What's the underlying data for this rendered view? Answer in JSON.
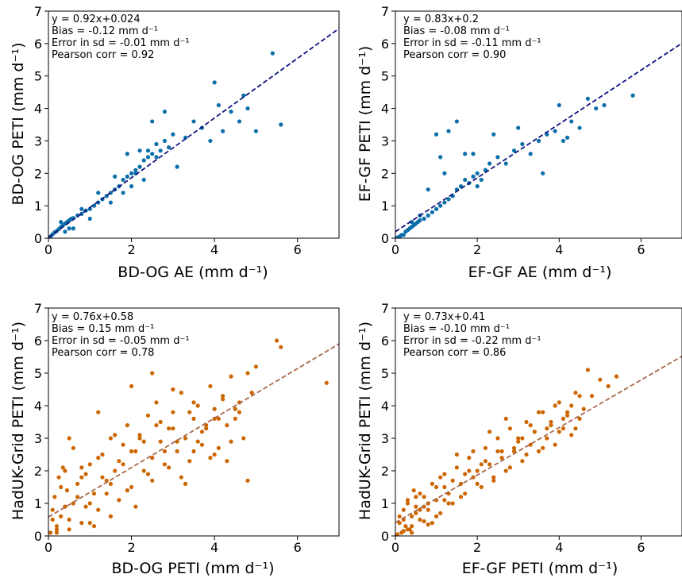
{
  "colors": {
    "top_points": "#0a6fa9",
    "top_fit": "#10157f",
    "bottom_points": "#cc6600",
    "bottom_fit": "#a86a4e"
  },
  "chart_data": [
    {
      "type": "scatter",
      "xlabel": "BD-OG AE (mm d⁻¹)",
      "ylabel": "BD-OG PETI (mm d⁻¹)",
      "xlim": [
        0,
        7
      ],
      "ylim": [
        0,
        7
      ],
      "xticks": [
        0,
        2,
        4,
        6
      ],
      "yticks": [
        0,
        1,
        2,
        3,
        4,
        5,
        6,
        7
      ],
      "annotations": [
        "y = 0.92x+0.024",
        "Bias = -0.12 mm d⁻¹",
        "Error in sd = -0.01 mm d⁻¹",
        "Pearson corr = 0.92"
      ],
      "fit": {
        "slope": 0.92,
        "intercept": 0.024
      },
      "point_color": "top_points",
      "fit_color": "top_fit",
      "x": [
        0.05,
        0.1,
        0.15,
        0.2,
        0.25,
        0.3,
        0.35,
        0.4,
        0.45,
        0.5,
        0.55,
        0.6,
        0.7,
        0.8,
        0.9,
        1.0,
        1.1,
        1.2,
        1.3,
        1.4,
        1.5,
        1.6,
        1.7,
        1.8,
        1.9,
        2.0,
        2.1,
        2.2,
        2.3,
        2.4,
        2.5,
        2.6,
        2.7,
        2.8,
        2.9,
        3.0,
        3.3,
        3.5,
        3.7,
        3.9,
        4.0,
        4.1,
        4.2,
        4.4,
        4.6,
        4.7,
        4.8,
        5.0,
        5.4,
        5.6,
        0.3,
        0.5,
        0.8,
        1.2,
        1.6,
        1.9,
        2.2,
        2.5,
        2.8,
        3.1,
        1.8,
        2.0,
        2.3,
        2.6,
        1.5,
        1.0,
        0.6,
        0.4,
        2.1,
        2.4
      ],
      "y": [
        0.05,
        0.12,
        0.18,
        0.22,
        0.28,
        0.35,
        0.4,
        0.45,
        0.5,
        0.55,
        0.6,
        0.62,
        0.7,
        0.75,
        0.85,
        0.9,
        1.0,
        1.1,
        1.2,
        1.3,
        1.4,
        1.5,
        1.6,
        1.8,
        1.9,
        2.0,
        2.1,
        2.2,
        2.4,
        2.5,
        2.6,
        2.5,
        2.7,
        3.0,
        2.8,
        3.2,
        3.1,
        3.6,
        3.4,
        3.0,
        4.8,
        4.1,
        3.3,
        3.9,
        3.6,
        4.4,
        4.0,
        3.3,
        5.7,
        3.5,
        0.5,
        0.3,
        0.9,
        1.4,
        1.9,
        2.6,
        2.7,
        3.6,
        3.9,
        2.2,
        1.4,
        1.6,
        1.8,
        2.9,
        1.1,
        0.6,
        0.3,
        0.2,
        2.0,
        2.7
      ]
    },
    {
      "type": "scatter",
      "xlabel": "EF-GF AE (mm d⁻¹)",
      "ylabel": "EF-GF PETI (mm d⁻¹)",
      "xlim": [
        0,
        7
      ],
      "ylim": [
        0,
        7
      ],
      "xticks": [
        0,
        2,
        4,
        6
      ],
      "yticks": [
        0,
        1,
        2,
        3,
        4,
        5,
        6,
        7
      ],
      "annotations": [
        "y = 0.83x+0.2",
        "Bias = -0.08 mm d⁻¹",
        "Error in sd = -0.11 mm d⁻¹",
        "Pearson corr = 0.90"
      ],
      "fit": {
        "slope": 0.83,
        "intercept": 0.2
      },
      "point_color": "top_points",
      "fit_color": "top_fit",
      "x": [
        0.05,
        0.1,
        0.15,
        0.2,
        0.25,
        0.3,
        0.35,
        0.4,
        0.45,
        0.5,
        0.55,
        0.6,
        0.7,
        0.8,
        0.9,
        1.0,
        1.1,
        1.2,
        1.3,
        1.4,
        1.5,
        1.6,
        1.7,
        1.8,
        1.9,
        2.0,
        2.1,
        2.2,
        2.3,
        2.5,
        2.7,
        2.9,
        3.1,
        3.3,
        3.5,
        3.7,
        3.9,
        4.0,
        4.1,
        4.3,
        4.5,
        4.7,
        4.9,
        5.1,
        5.8,
        1.0,
        1.3,
        1.5,
        1.7,
        2.4,
        0.8,
        0.6,
        0.4,
        1.1,
        2.0,
        3.0,
        3.6,
        4.2,
        1.9,
        1.2
      ],
      "y": [
        0.02,
        0.05,
        0.1,
        0.1,
        0.2,
        0.25,
        0.3,
        0.35,
        0.4,
        0.45,
        0.5,
        0.55,
        0.6,
        0.7,
        0.8,
        0.9,
        1.0,
        1.1,
        1.2,
        1.3,
        1.5,
        1.6,
        1.8,
        1.7,
        1.9,
        2.0,
        1.8,
        2.1,
        2.3,
        2.5,
        2.3,
        2.7,
        2.9,
        2.6,
        3.0,
        3.2,
        3.3,
        4.1,
        3.0,
        3.6,
        3.4,
        4.3,
        4.0,
        4.1,
        4.4,
        3.2,
        3.3,
        3.6,
        2.6,
        3.2,
        1.5,
        0.7,
        0.5,
        2.5,
        1.6,
        3.4,
        2.0,
        3.1,
        2.6,
        2.0
      ]
    },
    {
      "type": "scatter",
      "xlabel": "BD-OG PETI (mm d⁻¹)",
      "ylabel": "HadUK-Grid PETI (mm d⁻¹)",
      "xlim": [
        0,
        7
      ],
      "ylim": [
        0,
        7
      ],
      "xticks": [
        0,
        2,
        4,
        6
      ],
      "yticks": [
        0,
        1,
        2,
        3,
        4,
        5,
        6,
        7
      ],
      "annotations": [
        "y = 0.76x+0.58",
        "Bias = 0.15 mm d⁻¹",
        "Error in sd = -0.05 mm d⁻¹",
        "Pearson corr = 0.78"
      ],
      "fit": {
        "slope": 0.76,
        "intercept": 0.58
      },
      "point_color": "bottom_points",
      "fit_color": "bottom_fit",
      "x": [
        0.05,
        0.1,
        0.15,
        0.2,
        0.25,
        0.3,
        0.35,
        0.4,
        0.45,
        0.5,
        0.6,
        0.7,
        0.8,
        0.9,
        1.0,
        1.1,
        1.2,
        1.3,
        1.4,
        1.5,
        1.6,
        1.7,
        1.8,
        1.9,
        2.0,
        2.1,
        2.2,
        2.3,
        2.4,
        2.5,
        2.6,
        2.7,
        2.8,
        2.9,
        3.0,
        3.1,
        3.2,
        3.3,
        3.4,
        3.5,
        3.6,
        3.7,
        3.8,
        3.9,
        4.0,
        4.1,
        4.2,
        4.3,
        4.4,
        4.5,
        4.6,
        4.7,
        4.8,
        4.9,
        5.0,
        5.5,
        5.6,
        6.7,
        0.1,
        0.2,
        0.3,
        0.5,
        0.7,
        0.9,
        1.1,
        1.3,
        1.5,
        1.7,
        1.9,
        2.1,
        2.3,
        2.5,
        2.7,
        2.9,
        3.1,
        3.3,
        3.5,
        3.7,
        3.9,
        4.1,
        4.3,
        4.5,
        0.4,
        0.6,
        0.8,
        1.0,
        1.2,
        1.4,
        1.6,
        1.8,
        2.0,
        2.2,
        2.4,
        2.6,
        2.8,
        3.0,
        3.2,
        3.4,
        3.6,
        3.8,
        4.0,
        4.2,
        4.4,
        4.6,
        4.8,
        2.0,
        1.5,
        1.0,
        0.5,
        3.0,
        2.5,
        3.5,
        4.0,
        0.2,
        0.8,
        1.2
      ],
      "y": [
        0.1,
        0.5,
        1.2,
        0.3,
        1.8,
        0.6,
        2.1,
        0.9,
        1.4,
        0.2,
        1.0,
        1.6,
        0.4,
        1.9,
        2.2,
        1.3,
        0.8,
        2.5,
        1.7,
        3.0,
        2.0,
        1.1,
        2.8,
        3.4,
        1.5,
        2.6,
        3.1,
        2.0,
        3.7,
        2.4,
        4.1,
        2.9,
        2.2,
        3.3,
        3.8,
        2.6,
        4.4,
        3.0,
        2.3,
        3.6,
        4.0,
        2.8,
        3.3,
        4.6,
        3.9,
        2.7,
        4.2,
        3.4,
        4.9,
        3.6,
        4.1,
        3.0,
        5.0,
        4.4,
        5.2,
        6.0,
        5.8,
        4.7,
        0.8,
        0.2,
        1.5,
        0.5,
        1.2,
        0.9,
        0.3,
        1.8,
        0.6,
        2.3,
        1.4,
        0.9,
        2.9,
        1.7,
        3.5,
        2.1,
        2.9,
        1.6,
        2.6,
        3.2,
        2.4,
        3.6,
        2.3,
        3.9,
        2.0,
        2.7,
        1.8,
        1.0,
        2.4,
        1.3,
        3.1,
        2.2,
        2.6,
        3.0,
        1.9,
        3.4,
        2.6,
        3.3,
        1.8,
        3.8,
        2.9,
        3.4,
        2.5,
        4.3,
        2.9,
        3.8,
        1.7,
        4.6,
        1.6,
        0.4,
        3.0,
        4.5,
        5.0,
        4.1,
        3.6,
        0.1,
        2.1,
        3.8
      ]
    },
    {
      "type": "scatter",
      "xlabel": "EF-GF PETI (mm d⁻¹)",
      "ylabel": "HadUK-Grid PETI (mm d⁻¹)",
      "xlim": [
        0,
        7
      ],
      "ylim": [
        0,
        7
      ],
      "xticks": [
        0,
        2,
        4,
        6
      ],
      "yticks": [
        0,
        1,
        2,
        3,
        4,
        5,
        6,
        7
      ],
      "annotations": [
        "y = 0.73x+0.41",
        "Bias = -0.10 mm d⁻¹",
        "Error in sd = -0.22 mm d⁻¹",
        "Pearson corr = 0.86"
      ],
      "fit": {
        "slope": 0.73,
        "intercept": 0.41
      },
      "point_color": "bottom_points",
      "fit_color": "bottom_fit",
      "x": [
        0.05,
        0.1,
        0.15,
        0.2,
        0.25,
        0.3,
        0.35,
        0.4,
        0.45,
        0.5,
        0.6,
        0.7,
        0.8,
        0.9,
        1.0,
        1.1,
        1.2,
        1.3,
        1.4,
        1.5,
        1.6,
        1.7,
        1.8,
        1.9,
        2.0,
        2.1,
        2.2,
        2.3,
        2.4,
        2.5,
        2.6,
        2.7,
        2.8,
        2.9,
        3.0,
        3.1,
        3.2,
        3.3,
        3.4,
        3.5,
        3.6,
        3.7,
        3.8,
        3.9,
        4.0,
        4.1,
        4.2,
        4.3,
        4.4,
        4.5,
        4.6,
        4.8,
        5.0,
        5.2,
        5.4,
        0.1,
        0.2,
        0.3,
        0.4,
        0.5,
        0.6,
        0.7,
        0.8,
        0.9,
        1.0,
        1.2,
        1.4,
        1.6,
        1.8,
        2.0,
        2.2,
        2.4,
        2.6,
        2.8,
        3.0,
        3.2,
        3.4,
        3.6,
        3.8,
        4.0,
        4.2,
        4.4,
        0.3,
        0.5,
        0.7,
        1.1,
        1.3,
        1.5,
        1.7,
        1.9,
        2.1,
        2.3,
        2.5,
        2.7,
        2.9,
        3.1,
        3.3,
        3.5,
        3.7,
        3.9,
        4.1,
        4.3,
        4.5,
        4.7,
        0.2,
        0.4,
        0.6,
        0.8,
        1.0,
        1.2
      ],
      "y": [
        0.05,
        0.4,
        0.1,
        0.8,
        0.3,
        1.1,
        0.2,
        0.6,
        1.4,
        0.9,
        0.5,
        1.2,
        0.8,
        1.6,
        1.1,
        0.7,
        1.9,
        1.3,
        1.0,
        2.1,
        1.6,
        1.3,
        2.4,
        1.8,
        2.0,
        1.5,
        2.7,
        2.2,
        1.7,
        3.0,
        2.4,
        2.0,
        3.3,
        2.6,
        2.9,
        2.3,
        3.5,
        2.8,
        3.2,
        2.6,
        3.8,
        3.0,
        3.4,
        2.8,
        4.1,
        3.3,
        3.7,
        3.1,
        4.4,
        3.6,
        3.9,
        4.3,
        4.8,
        4.6,
        4.9,
        0.6,
        0.15,
        1.0,
        0.3,
        0.7,
        1.3,
        0.45,
        1.0,
        0.4,
        1.5,
        1.1,
        1.7,
        1.2,
        2.0,
        1.6,
        2.3,
        1.8,
        2.6,
        2.1,
        3.0,
        2.5,
        3.2,
        2.7,
        3.5,
        3.2,
        3.8,
        3.3,
        0.2,
        1.2,
        0.9,
        1.8,
        1.0,
        2.5,
        1.9,
        2.6,
        2.2,
        3.2,
        2.6,
        3.6,
        2.7,
        3.0,
        3.4,
        3.8,
        3.3,
        4.0,
        3.6,
        4.0,
        4.3,
        5.1,
        0.5,
        0.1,
        0.8,
        0.35,
        0.6,
        1.5
      ]
    }
  ]
}
